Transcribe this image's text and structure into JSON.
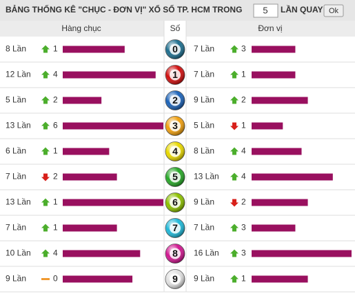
{
  "header": {
    "title": "BẢNG THỐNG KÊ \"CHỤC - ĐƠN VỊ\" XỔ SỐ TP. HCM TRONG",
    "input_value": "5",
    "suffix": "LẦN QUAY",
    "button": "Ok"
  },
  "columns": {
    "tens": "Hàng chục",
    "digit": "Số",
    "units": "Đơn vị"
  },
  "rows": [
    {
      "digit": 0,
      "ball_color": "#1f6f8f",
      "tens": {
        "count": {
          "value": 8,
          "label": "8 Lần"
        },
        "trend": "up",
        "change": 1
      },
      "units": {
        "count": {
          "value": 7,
          "label": "7 Lần"
        },
        "trend": "up",
        "change": 3
      }
    },
    {
      "digit": 1,
      "ball_color": "#d01010",
      "tens": {
        "count": {
          "value": 12,
          "label": "12 Lần"
        },
        "trend": "up",
        "change": 4
      },
      "units": {
        "count": {
          "value": 7,
          "label": "7 Lần"
        },
        "trend": "up",
        "change": 1
      }
    },
    {
      "digit": 2,
      "ball_color": "#1c63b8",
      "tens": {
        "count": {
          "value": 5,
          "label": "5 Lần"
        },
        "trend": "up",
        "change": 2
      },
      "units": {
        "count": {
          "value": 9,
          "label": "9 Lần"
        },
        "trend": "up",
        "change": 2
      }
    },
    {
      "digit": 3,
      "ball_color": "#f0a010",
      "tens": {
        "count": {
          "value": 13,
          "label": "13 Lần"
        },
        "trend": "up",
        "change": 6
      },
      "units": {
        "count": {
          "value": 5,
          "label": "5 Lần"
        },
        "trend": "down",
        "change": 1
      }
    },
    {
      "digit": 4,
      "ball_color": "#e8d800",
      "tens": {
        "count": {
          "value": 6,
          "label": "6 Lần"
        },
        "trend": "up",
        "change": 1
      },
      "units": {
        "count": {
          "value": 8,
          "label": "8 Lần"
        },
        "trend": "up",
        "change": 4
      }
    },
    {
      "digit": 5,
      "ball_color": "#28a828",
      "tens": {
        "count": {
          "value": 7,
          "label": "7 Lần"
        },
        "trend": "down",
        "change": 2
      },
      "units": {
        "count": {
          "value": 13,
          "label": "13 Lần"
        },
        "trend": "up",
        "change": 4
      }
    },
    {
      "digit": 6,
      "ball_color": "#8cc000",
      "tens": {
        "count": {
          "value": 13,
          "label": "13 Lần"
        },
        "trend": "up",
        "change": 1
      },
      "units": {
        "count": {
          "value": 9,
          "label": "9 Lần"
        },
        "trend": "down",
        "change": 2
      }
    },
    {
      "digit": 7,
      "ball_color": "#20b8d8",
      "tens": {
        "count": {
          "value": 7,
          "label": "7 Lần"
        },
        "trend": "up",
        "change": 1
      },
      "units": {
        "count": {
          "value": 7,
          "label": "7 Lần"
        },
        "trend": "up",
        "change": 3
      }
    },
    {
      "digit": 8,
      "ball_color": "#d01890",
      "tens": {
        "count": {
          "value": 10,
          "label": "10 Lần"
        },
        "trend": "up",
        "change": 4
      },
      "units": {
        "count": {
          "value": 16,
          "label": "16 Lần"
        },
        "trend": "up",
        "change": 3
      }
    },
    {
      "digit": 9,
      "ball_color": "#e0e0e0",
      "tens": {
        "count": {
          "value": 9,
          "label": "9 Lần"
        },
        "trend": "flat",
        "change": 0
      },
      "units": {
        "count": {
          "value": 9,
          "label": "9 Lần"
        },
        "trend": "up",
        "change": 1
      }
    }
  ]
}
